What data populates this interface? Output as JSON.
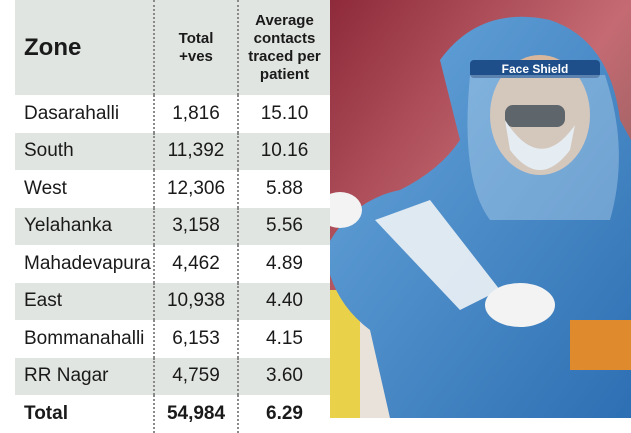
{
  "table": {
    "header": [
      "Zone",
      [
        "Total",
        "+ves"
      ],
      [
        "Average",
        "contacts",
        "traced per",
        "patient"
      ]
    ],
    "rows": [
      [
        "Dasarahalli",
        "1,816",
        "15.10"
      ],
      [
        "South",
        "11,392",
        "10.16"
      ],
      [
        "West",
        "12,306",
        "5.88"
      ],
      [
        "Yelahanka",
        "3,158",
        "5.56"
      ],
      [
        "Mahadevapura",
        "4,462",
        "4.89"
      ],
      [
        "East",
        "10,938",
        "4.40"
      ],
      [
        "Bommanahalli",
        "6,153",
        "4.15"
      ],
      [
        "RR Nagar",
        "4,759",
        "3.60"
      ],
      [
        "Total",
        "54,984",
        "6.29"
      ]
    ]
  },
  "photo": {
    "shield_label": "Face Shield"
  }
}
